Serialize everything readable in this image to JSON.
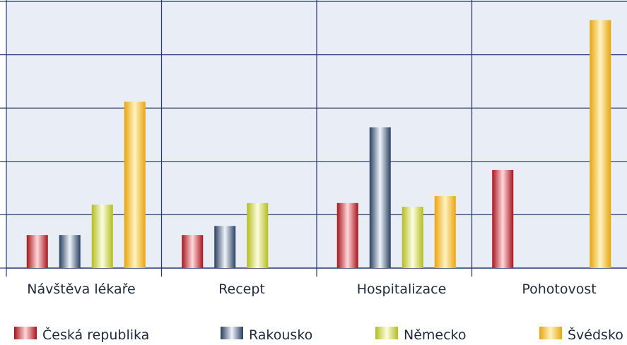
{
  "chart_data": {
    "type": "bar",
    "categories": [
      "Návštěva lékaře",
      "Recept",
      "Hospitalizace",
      "Pohotovost"
    ],
    "series": [
      {
        "name": "Česká republika",
        "values": [
          0.62,
          0.62,
          1.22,
          1.84
        ],
        "color": "#d6303a",
        "gradient": [
          "#a8141d",
          "#ffd8da"
        ]
      },
      {
        "name": "Rakousko",
        "values": [
          0.62,
          0.79,
          2.64,
          null
        ],
        "color": "#3f5a80",
        "gradient": [
          "#2a3f60",
          "#eef3fa"
        ]
      },
      {
        "name": "Německo",
        "values": [
          1.19,
          1.22,
          1.15,
          null
        ],
        "color": "#d8df3f",
        "gradient": [
          "#b4bd1e",
          "#fbfde0"
        ]
      },
      {
        "name": "Švédsko",
        "values": [
          3.12,
          null,
          1.35,
          4.65
        ],
        "color": "#f5c234",
        "gradient": [
          "#e8a50e",
          "#fff2c0"
        ]
      }
    ],
    "ylim": [
      0,
      5
    ],
    "grid": true,
    "legend_position": "bottom",
    "background": "#e9edf6",
    "grid_color": "#23386d"
  }
}
